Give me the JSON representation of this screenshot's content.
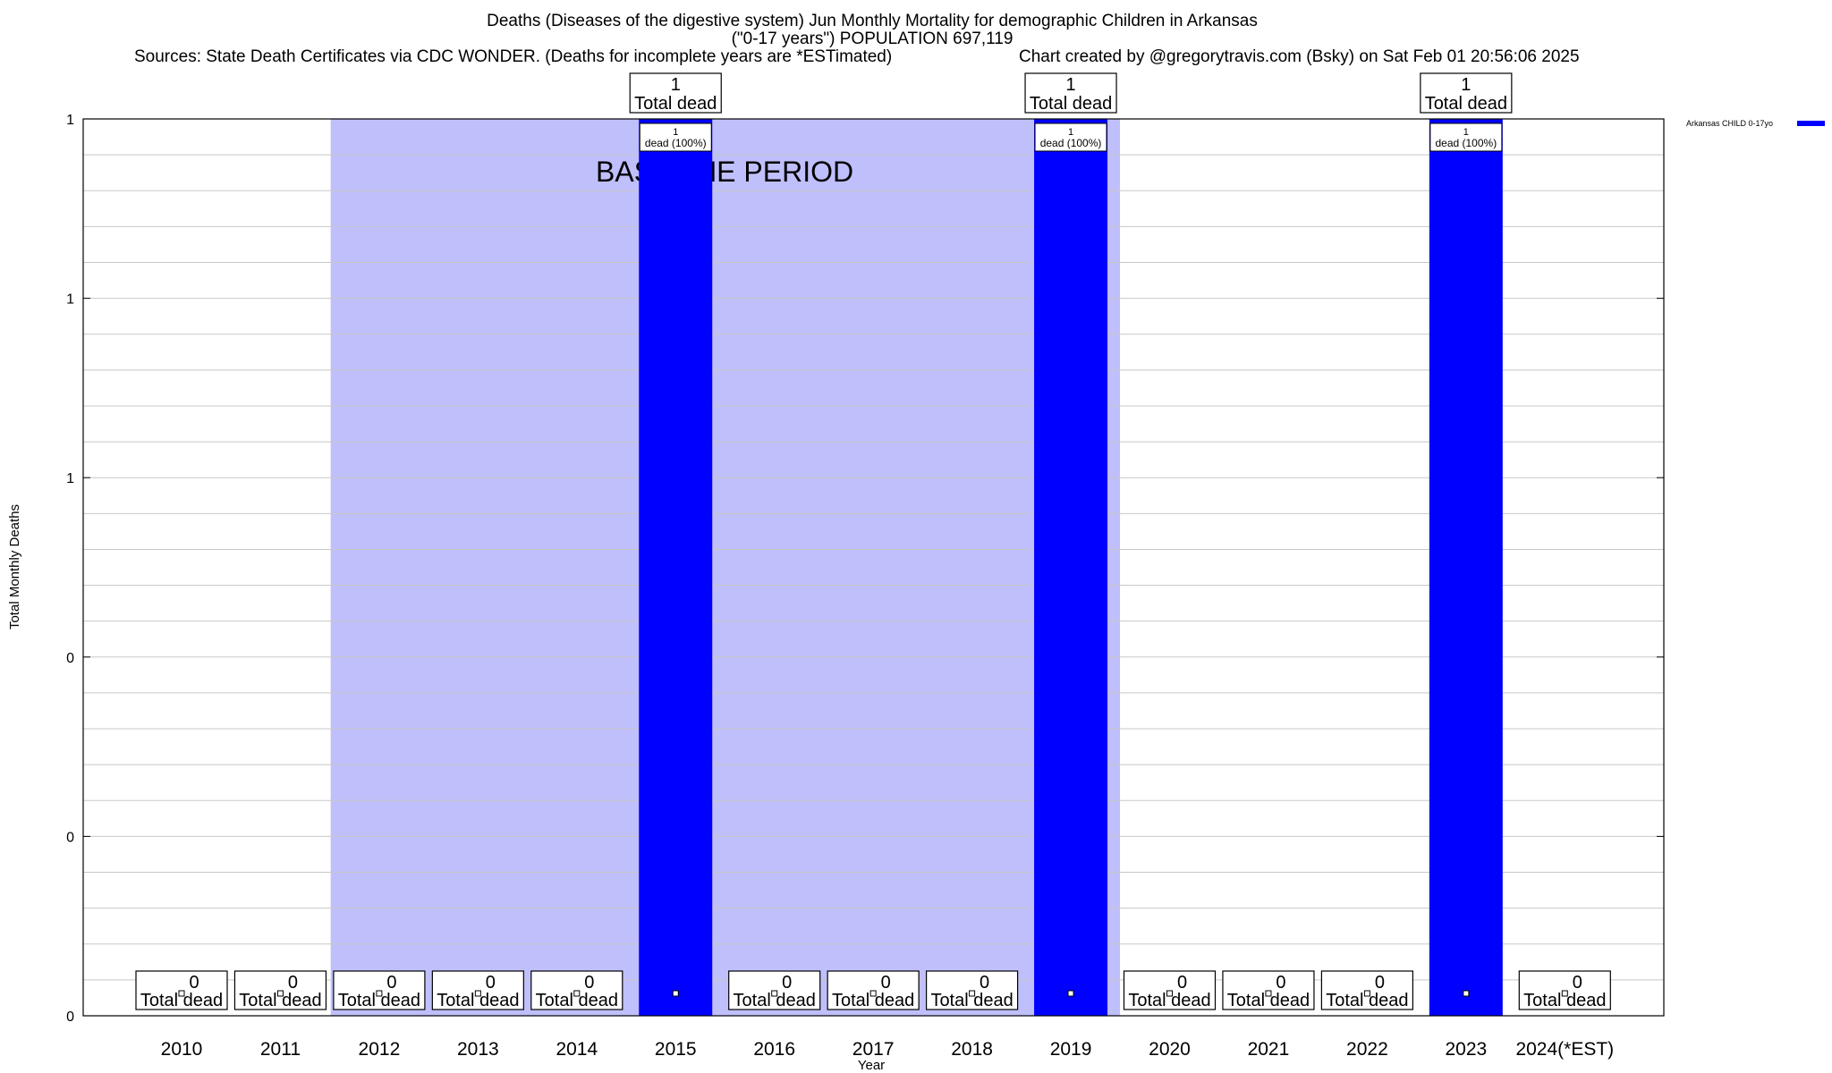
{
  "header": {
    "title_line1": "Deaths (Diseases of the digestive system) Jun Monthly Mortality for demographic Children in Arkansas",
    "title_line2": "(\"0-17 years\") POPULATION 697,119",
    "sources": "Sources: State Death Certificates via CDC WONDER. (Deaths for incomplete years are *ESTimated)",
    "credit": "Chart created by @gregorytravis.com (Bsky) on Sat Feb 01 20:56:06 2025"
  },
  "chart_data": {
    "type": "bar",
    "xlabel": "Year",
    "ylabel": "Total Monthly Deaths",
    "ylim": [
      0,
      1
    ],
    "y_tick_labels": [
      "0",
      "0",
      "0",
      "1",
      "1",
      "1"
    ],
    "categories": [
      "2010",
      "2011",
      "2012",
      "2013",
      "2014",
      "2015",
      "2016",
      "2017",
      "2018",
      "2019",
      "2020",
      "2021",
      "2022",
      "2023",
      "2024(*EST)"
    ],
    "series": [
      {
        "name": "Arkansas CHILD 0-17yo",
        "color": "#0000ff",
        "values": [
          0,
          0,
          0,
          0,
          0,
          1,
          0,
          0,
          0,
          1,
          0,
          0,
          0,
          1,
          0
        ]
      }
    ],
    "total_label": "Total dead",
    "bar_label_prefix": "dead",
    "bar_label_suffix": "(100%)",
    "baseline_band": {
      "label": "BASELINE PERIOD",
      "from_category": "2012",
      "to_category": "2019",
      "color": "#bfbffb"
    },
    "legend_position": "top-right",
    "grid": true
  }
}
